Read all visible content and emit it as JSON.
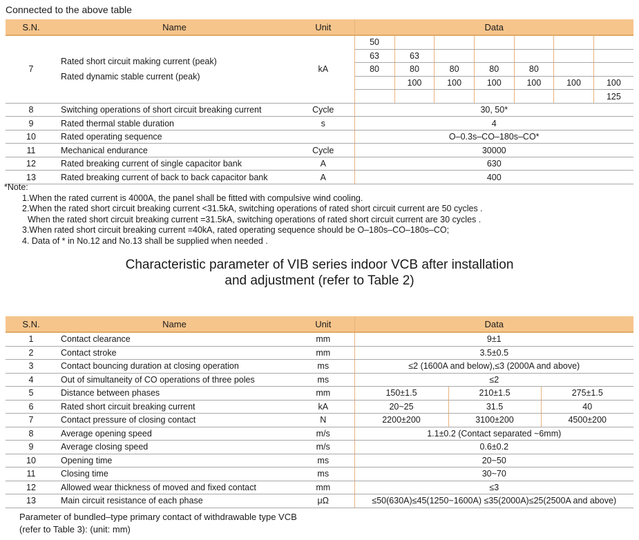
{
  "caption": "Connected to the above table",
  "headers": {
    "sn": "S.N.",
    "name": "Name",
    "unit": "Unit",
    "data": "Data"
  },
  "table1": {
    "row7": {
      "sn": "7",
      "name1": "Rated short circuit making current (peak)",
      "name2": "Rated dynamic stable current (peak)",
      "unit": "kA",
      "grid": [
        [
          "50",
          "",
          "",
          "",
          "",
          "",
          ""
        ],
        [
          "63",
          "63",
          "",
          "",
          "",
          "",
          ""
        ],
        [
          "80",
          "80",
          "80",
          "80",
          "80",
          "",
          ""
        ],
        [
          "",
          "100",
          "100",
          "100",
          "100",
          "100",
          "100"
        ],
        [
          "",
          "",
          "",
          "",
          "",
          "",
          "125"
        ]
      ]
    },
    "rows": [
      {
        "sn": "8",
        "name": "Switching operations of short circuit breaking current",
        "unit": "Cycle",
        "data": "30, 50*"
      },
      {
        "sn": "9",
        "name": "Rated thermal stable duration",
        "unit": "s",
        "data": "4"
      },
      {
        "sn": "10",
        "name": "Rated operating sequence",
        "unit": "",
        "data": "O–0.3s–CO–180s–CO*"
      },
      {
        "sn": "11",
        "name": "Mechanical endurance",
        "unit": "Cycle",
        "data": "30000"
      },
      {
        "sn": "12",
        "name": "Rated breaking current of single capacitor bank",
        "unit": "A",
        "data": "630"
      },
      {
        "sn": "13",
        "name": "Rated breaking current of back to back capacitor bank",
        "unit": "A",
        "data": "400"
      }
    ]
  },
  "notes": {
    "title": "*Note:",
    "items": [
      "1.When the rated current is 4000A, the panel shall be fitted with compulsive wind cooling.",
      "2.When the rated short circuit breaking current <31.5kA, switching operations of rated short circuit current are 50 cycles .",
      "When the rated short circuit breaking current =31.5kA, switching operations of rated short circuit current are 30 cycles .",
      "3.When rated short circuit breaking current =40kA, rated operating sequence should be O–180s–CO–180s–CO;",
      "4. Data of * in No.12 and No.13 shall be supplied when needed ."
    ]
  },
  "section_title": {
    "line1": "Characteristic parameter of VIB series indoor VCB after installation",
    "line2": "and adjustment (refer to Table 2)"
  },
  "table2": {
    "rows": [
      {
        "sn": "1",
        "name": "Contact clearance",
        "unit": "mm",
        "data": [
          "9±1"
        ]
      },
      {
        "sn": "2",
        "name": "Contact stroke",
        "unit": "mm",
        "data": [
          "3.5±0.5"
        ]
      },
      {
        "sn": "3",
        "name": "Contact bouncing duration at closing operation",
        "unit": "ms",
        "data": [
          "≤2 (1600A and below),≤3 (2000A and above)"
        ]
      },
      {
        "sn": "4",
        "name": "Out of simultaneity of CO operations of three poles",
        "unit": "ms",
        "data": [
          "≤2"
        ]
      },
      {
        "sn": "5",
        "name": "Distance between phases",
        "unit": "mm",
        "data": [
          "150±1.5",
          "210±1.5",
          "275±1.5"
        ]
      },
      {
        "sn": "6",
        "name": "Rated short circuit breaking current",
        "unit": "kA",
        "data": [
          "20~25",
          "31.5",
          "40"
        ]
      },
      {
        "sn": "7",
        "name": "Contact pressure of closing contact",
        "unit": "N",
        "data": [
          "2200±200",
          "3100±200",
          "4500±200"
        ]
      },
      {
        "sn": "8",
        "name": "Average opening speed",
        "unit": "m/s",
        "data": [
          "1.1±0.2 (Contact separated ~6mm)"
        ]
      },
      {
        "sn": "9",
        "name": "Average closing speed",
        "unit": "m/s",
        "data": [
          "0.6±0.2"
        ]
      },
      {
        "sn": "10",
        "name": "Opening time",
        "unit": "ms",
        "data": [
          "20~50"
        ]
      },
      {
        "sn": "11",
        "name": "Closing time",
        "unit": "ms",
        "data": [
          "30~70"
        ]
      },
      {
        "sn": "12",
        "name": "Allowed wear thickness of moved and fixed contact",
        "unit": "mm",
        "data": [
          "≤3"
        ]
      },
      {
        "sn": "13",
        "name": "Main circuit resistance of each phase",
        "unit": "μΩ",
        "data": [
          "≤50(630A)≤45(1250~1600A) ≤35(2000A)≤25(2500A and above)"
        ]
      }
    ]
  },
  "footer": {
    "line1": "Parameter of bundled–type primary contact of withdrawable type VCB",
    "line2": "(refer to Table 3): (unit: mm)"
  }
}
